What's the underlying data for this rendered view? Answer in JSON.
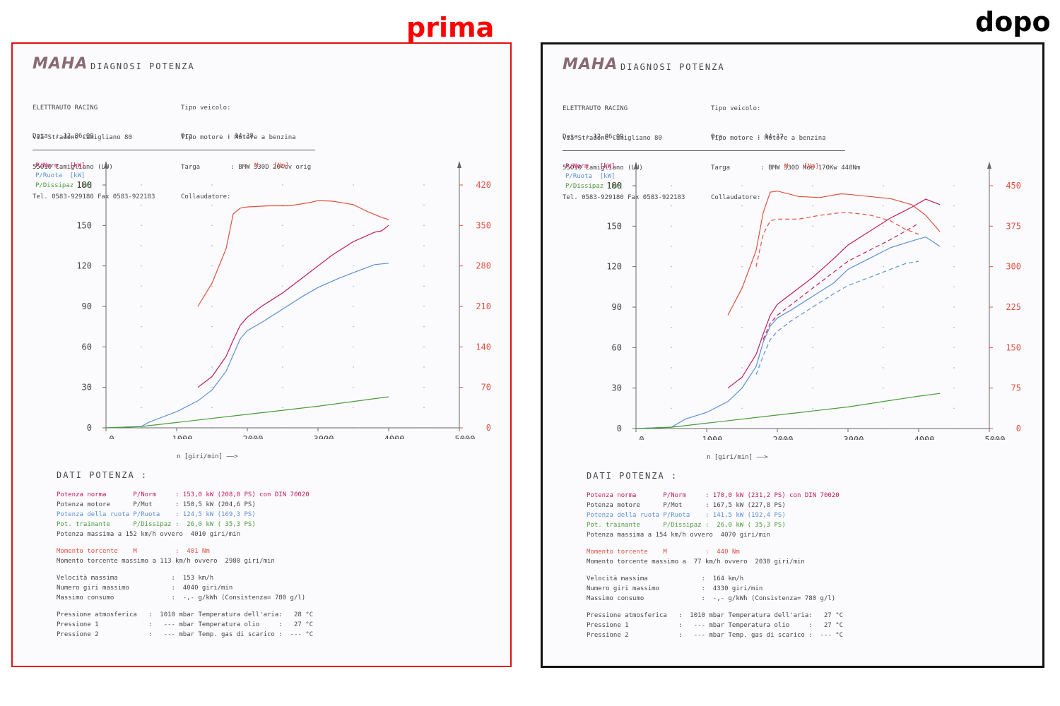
{
  "labels": {
    "before": "prima",
    "after": "dopo"
  },
  "colors": {
    "norm": "#c2185b",
    "ruota": "#5b8fd8",
    "dissip": "#4a9a3a",
    "coppia": "#e05040",
    "frame_before": "#e31010",
    "frame_after": "#111111",
    "label_before": "#ff0000",
    "label_after": "#000000"
  },
  "sheets": [
    {
      "logo": "MAHA",
      "title": "DIAGNOSI POTENZA",
      "company": [
        "ELETTRAUTO RACING",
        "Via Stradone Camigliano 80",
        "55010 Camigliano (LU)",
        "Tel. 0583-929180 Fax 0583-922183"
      ],
      "vehicle": [
        "Tipo veicolo:",
        "Tipo motore : Motore a benzina",
        "Targa        : BMW 330D 204cv orig",
        "Collaudatore:"
      ],
      "date": "Data  : 12.06.09",
      "time": "Ora         : 14:38",
      "legend": {
        "norm": "P/Norm   [kW]",
        "ruota": "P/Ruota  [kW]",
        "dissip": "P/Dissipaz [kW]",
        "coppia": "M    [Nm]"
      },
      "xlabel": "n [giri/min] ——>",
      "dati_title": "DATI POTENZA :",
      "lines": [
        {
          "c": "norm",
          "text": "Potenza norma       P/Norm     : 153,0 kW (208,0 PS) con DIN 70020"
        },
        {
          "c": "base",
          "text": "Potenza motore      P/Mot      : 150,5 kW (204,6 PS)"
        },
        {
          "c": "ruota",
          "text": "Potenza della ruota P/Ruota    : 124,5 kW (169,3 PS)"
        },
        {
          "c": "dissip",
          "text": "Pot. trainante      P/Dissipaz :  26,0 kW ( 35,3 PS)"
        },
        {
          "c": "base",
          "text": "Potenza massima a 152 km/h ovvero  4010 giri/min"
        }
      ],
      "torque_lines": [
        {
          "c": "coppia",
          "text": "Momento torcente    M          :  401 Nm"
        },
        {
          "c": "base",
          "text": "Momento torcente massimo a 113 km/h ovvero  2980 giri/min"
        }
      ],
      "speed_lines": [
        {
          "c": "base",
          "text": "Velocità massima              :  153 km/h"
        },
        {
          "c": "base",
          "text": "Numero giri massimo           :  4040 giri/min"
        },
        {
          "c": "base",
          "text": "Massimo consumo               :  -,- g/kWh (Consistenza= 780 g/l)"
        }
      ],
      "pressure_lines": [
        {
          "c": "base",
          "text": "Pressione atmosferica   :  1010 mbar Temperatura dell'aria:   28 °C"
        },
        {
          "c": "base",
          "text": "Pressione 1             :   --- mbar Temperatura olio     :   27 °C"
        },
        {
          "c": "base",
          "text": "Pressione 2             :   --- mbar Temp. gas di scarico :  --- °C"
        }
      ]
    },
    {
      "logo": "MAHA",
      "title": "DIAGNOSI POTENZA",
      "company": [
        "ELETTRAUTO RACING",
        "Via Stradone Camigliano 80",
        "55010 Camigliano (LU)",
        "Tel. 0583-929180 Fax 0583-922183"
      ],
      "vehicle": [
        "Tipo veicolo:",
        "Tipo motore : Motore a benzina",
        "Targa        : BMW 330D Mod 170Kw 440Nm",
        "Collaudatore:"
      ],
      "date": "Data  : 12.06.09",
      "time": "Ora         : 14:12",
      "legend": {
        "norm": "P/Norm   [kW]",
        "ruota": "P/Ruota  [kW]",
        "dissip": "P/Dissipaz [kW]",
        "coppia": "M    [Nm]"
      },
      "xlabel": "n [giri/min] ——>",
      "dati_title": "DATI POTENZA :",
      "lines": [
        {
          "c": "norm",
          "text": "Potenza norma       P/Norm     : 170,0 kW (231,2 PS) con DIN 70020"
        },
        {
          "c": "base",
          "text": "Potenza motore      P/Mot      : 167,5 kW (227,8 PS)"
        },
        {
          "c": "ruota",
          "text": "Potenza della ruota P/Ruota    : 141,5 kW (192,4 PS)"
        },
        {
          "c": "dissip",
          "text": "Pot. trainante      P/Dissipaz :  26,0 kW ( 35,3 PS)"
        },
        {
          "c": "base",
          "text": "Potenza massima a 154 km/h ovvero  4070 giri/min"
        }
      ],
      "torque_lines": [
        {
          "c": "coppia",
          "text": "Momento torcente    M          :  440 Nm"
        },
        {
          "c": "base",
          "text": "Momento torcente massimo a  77 km/h ovvero  2030 giri/min"
        }
      ],
      "speed_lines": [
        {
          "c": "base",
          "text": "Velocità massima              :  164 km/h"
        },
        {
          "c": "base",
          "text": "Numero giri massimo           :  4330 giri/min"
        },
        {
          "c": "base",
          "text": "Massimo consumo               :  -,- g/kWh (Consistenza= 780 g/l)"
        }
      ],
      "pressure_lines": [
        {
          "c": "base",
          "text": "Pressione atmosferica   :  1010 mbar Temperatura dell'aria:   27 °C"
        },
        {
          "c": "base",
          "text": "Pressione 1             :   --- mbar Temperatura olio     :   27 °C"
        },
        {
          "c": "base",
          "text": "Pressione 2             :   --- mbar Temp. gas di scarico :  --- °C"
        }
      ]
    }
  ],
  "chart_data": [
    {
      "type": "line",
      "x_ticks": [
        0,
        1000,
        2000,
        3000,
        4000,
        5000
      ],
      "ylim_left": [
        0,
        180
      ],
      "y_ticks_left": [
        0,
        30,
        60,
        90,
        120,
        150,
        180
      ],
      "ylim_right": [
        0,
        420
      ],
      "y_ticks_right": [
        0,
        70,
        140,
        210,
        280,
        350,
        420
      ],
      "grid": "dotted",
      "series": [
        {
          "name": "P/Norm",
          "axis": "left",
          "color": "norm",
          "x": [
            1300,
            1500,
            1700,
            1800,
            1900,
            2000,
            2200,
            2500,
            2800,
            3000,
            3200,
            3500,
            3800,
            3900,
            4000
          ],
          "y": [
            30,
            38,
            53,
            65,
            76,
            82,
            90,
            100,
            112,
            120,
            128,
            138,
            145,
            146,
            150
          ]
        },
        {
          "name": "P/Ruota",
          "axis": "left",
          "color": "ruota",
          "x": [
            0,
            500,
            600,
            700,
            1000,
            1300,
            1500,
            1700,
            1800,
            1900,
            2000,
            2200,
            2500,
            2800,
            3000,
            3300,
            3600,
            3800,
            4000
          ],
          "y": [
            0,
            1,
            4,
            6,
            12,
            20,
            28,
            42,
            54,
            66,
            72,
            78,
            88,
            98,
            104,
            111,
            117,
            121,
            122
          ]
        },
        {
          "name": "P/Dissipaz",
          "axis": "left",
          "color": "dissip",
          "x": [
            0,
            500,
            1000,
            2000,
            3000,
            4000
          ],
          "y": [
            0,
            1,
            4,
            10,
            16,
            23
          ]
        },
        {
          "name": "M",
          "axis": "right",
          "color": "coppia",
          "x": [
            1300,
            1500,
            1700,
            1800,
            1900,
            2000,
            2300,
            2600,
            2900,
            3000,
            3200,
            3500,
            3700,
            3900,
            4000
          ],
          "y": [
            210,
            250,
            310,
            370,
            380,
            382,
            384,
            384,
            390,
            393,
            392,
            386,
            374,
            364,
            360
          ]
        }
      ]
    },
    {
      "type": "line",
      "x_ticks": [
        0,
        1000,
        2000,
        3000,
        4000,
        5000
      ],
      "ylim_left": [
        0,
        180
      ],
      "y_ticks_left": [
        0,
        30,
        60,
        90,
        120,
        150,
        180
      ],
      "ylim_right": [
        0,
        450
      ],
      "y_ticks_right": [
        0,
        75,
        150,
        225,
        300,
        375,
        450
      ],
      "grid": "dotted",
      "series": [
        {
          "name": "P/Norm",
          "axis": "left",
          "color": "norm",
          "x": [
            1300,
            1500,
            1700,
            1800,
            1900,
            2000,
            2200,
            2500,
            2800,
            3000,
            3300,
            3600,
            3900,
            4100,
            4300
          ],
          "y": [
            30,
            38,
            55,
            70,
            84,
            92,
            100,
            112,
            126,
            136,
            146,
            156,
            164,
            170,
            166
          ]
        },
        {
          "name": "P/Ruota",
          "axis": "left",
          "color": "ruota",
          "x": [
            0,
            500,
            600,
            700,
            1000,
            1300,
            1500,
            1700,
            1800,
            1900,
            2000,
            2200,
            2500,
            2800,
            3000,
            3300,
            3600,
            3900,
            4100,
            4300
          ],
          "y": [
            0,
            1,
            4,
            7,
            12,
            20,
            30,
            46,
            64,
            76,
            82,
            88,
            98,
            108,
            118,
            126,
            134,
            139,
            142,
            135
          ]
        },
        {
          "name": "P/Dissipaz",
          "axis": "left",
          "color": "dissip",
          "x": [
            0,
            500,
            1000,
            2000,
            3000,
            4000,
            4300
          ],
          "y": [
            0,
            1,
            4,
            10,
            16,
            24,
            26
          ]
        },
        {
          "name": "M",
          "axis": "right",
          "color": "coppia",
          "x": [
            1300,
            1500,
            1700,
            1800,
            1900,
            2000,
            2300,
            2600,
            2900,
            3000,
            3300,
            3600,
            3900,
            4100,
            4300
          ],
          "y": [
            210,
            260,
            330,
            400,
            438,
            440,
            430,
            428,
            435,
            434,
            430,
            426,
            415,
            395,
            365
          ]
        },
        {
          "name": "P/Norm (prima)",
          "axis": "left",
          "color": "norm",
          "dashed": true,
          "x": [
            1800,
            1900,
            2000,
            2200,
            2500,
            2800,
            3000,
            3300,
            3600,
            3800,
            4000
          ],
          "y": [
            66,
            78,
            84,
            92,
            104,
            116,
            124,
            132,
            140,
            146,
            152
          ]
        },
        {
          "name": "P/Ruota (prima)",
          "axis": "left",
          "color": "ruota",
          "dashed": true,
          "x": [
            1700,
            1800,
            1900,
            2000,
            2200,
            2500,
            2800,
            3000,
            3300,
            3600,
            3800,
            4000
          ],
          "y": [
            40,
            54,
            66,
            72,
            80,
            90,
            100,
            106,
            112,
            118,
            122,
            124
          ]
        },
        {
          "name": "M (prima)",
          "axis": "right",
          "color": "coppia",
          "dashed": true,
          "x": [
            1700,
            1800,
            1900,
            2000,
            2300,
            2600,
            2900,
            3000,
            3300,
            3600,
            3800,
            4000
          ],
          "y": [
            300,
            360,
            385,
            388,
            388,
            395,
            400,
            400,
            396,
            385,
            370,
            360
          ]
        }
      ]
    }
  ]
}
